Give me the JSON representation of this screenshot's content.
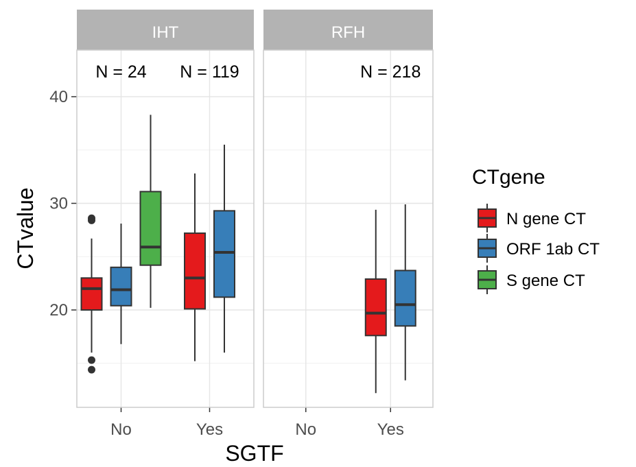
{
  "chart_data": {
    "type": "boxplot",
    "xlabel": "SGTF",
    "ylabel": "CTvalue",
    "ylim": [
      10,
      45
    ],
    "yticks": [
      20,
      30,
      40
    ],
    "categories": [
      "No",
      "Yes"
    ],
    "legend": {
      "title": "CTgene",
      "position": "right",
      "items": [
        "N gene CT",
        "ORF 1ab CT",
        "S gene CT"
      ]
    },
    "colors": {
      "N gene CT": "#e41a1c",
      "ORF 1ab CT": "#377eb8",
      "S gene CT": "#4daf4a"
    },
    "panels": [
      {
        "strip": "IHT",
        "annotations": [
          {
            "category": "No",
            "text": "N = 24"
          },
          {
            "category": "Yes",
            "text": "N = 119"
          }
        ],
        "boxes": [
          {
            "category": "No",
            "series": "N gene CT",
            "whisker_low": 16.0,
            "q1": 20.0,
            "median": 22.0,
            "q3": 23.0,
            "whisker_high": 26.7,
            "outliers": [
              28.6,
              28.4,
              15.3,
              14.4
            ]
          },
          {
            "category": "No",
            "series": "ORF 1ab CT",
            "whisker_low": 16.8,
            "q1": 20.4,
            "median": 21.9,
            "q3": 24.0,
            "whisker_high": 28.1,
            "outliers": []
          },
          {
            "category": "No",
            "series": "S gene CT",
            "whisker_low": 20.2,
            "q1": 24.2,
            "median": 25.9,
            "q3": 31.1,
            "whisker_high": 38.3,
            "outliers": []
          },
          {
            "category": "Yes",
            "series": "N gene CT",
            "whisker_low": 15.2,
            "q1": 20.1,
            "median": 23.0,
            "q3": 27.2,
            "whisker_high": 32.8,
            "outliers": []
          },
          {
            "category": "Yes",
            "series": "ORF 1ab CT",
            "whisker_low": 16.0,
            "q1": 21.2,
            "median": 25.4,
            "q3": 29.3,
            "whisker_high": 35.5,
            "outliers": []
          }
        ]
      },
      {
        "strip": "RFH",
        "annotations": [
          {
            "category": "Yes",
            "text": "N = 218"
          }
        ],
        "boxes": [
          {
            "category": "Yes",
            "series": "N gene CT",
            "whisker_low": 12.2,
            "q1": 17.6,
            "median": 19.7,
            "q3": 22.9,
            "whisker_high": 29.4,
            "outliers": []
          },
          {
            "category": "Yes",
            "series": "ORF 1ab CT",
            "whisker_low": 13.4,
            "q1": 18.5,
            "median": 20.5,
            "q3": 23.7,
            "whisker_high": 29.9,
            "outliers": []
          }
        ]
      }
    ]
  }
}
